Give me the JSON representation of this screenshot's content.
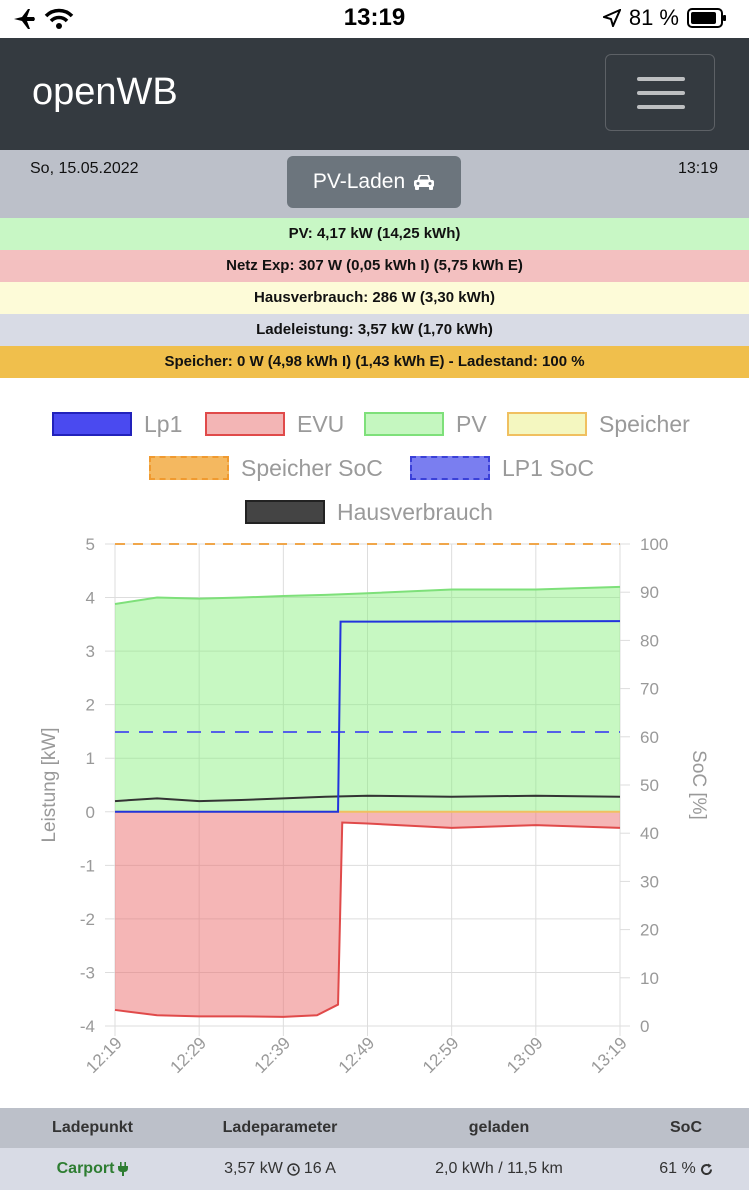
{
  "status_bar": {
    "time": "13:19",
    "battery": "81 %"
  },
  "navbar": {
    "brand": "openWB"
  },
  "info": {
    "date": "So, 15.05.2022",
    "mode_button": "PV-Laden",
    "time": "13:19"
  },
  "summary_rows": [
    {
      "text": "PV: 4,17 kW (14,25 kWh)",
      "color": "#c8f7c5"
    },
    {
      "text": "Netz Exp: 307 W (0,05 kWh I) (5,75 kWh E)",
      "color": "#f3c0c0"
    },
    {
      "text": "Hausverbrauch: 286 W (3,30 kWh)",
      "color": "#fdfbd8"
    },
    {
      "text": "Ladeleistung: 3,57 kW (1,70 kWh)",
      "color": "#d8dbe5"
    },
    {
      "text": "Speicher: 0 W (4,98 kWh I) (1,43 kWh E) - Ladestand: 100 %",
      "color": "#f0bf4c"
    }
  ],
  "chart_data": {
    "type": "line",
    "legend": [
      "Lp1",
      "EVU",
      "PV",
      "Speicher",
      "Speicher SoC",
      "LP1 SoC",
      "Hausverbrauch"
    ],
    "x_ticks": [
      "12:19",
      "12:29",
      "12:39",
      "12:49",
      "12:59",
      "13:09",
      "13:19"
    ],
    "ylabel": "Leistung [kW]",
    "ylabel_right": "SoC [%]",
    "ylim": [
      -4,
      5
    ],
    "ylim_right": [
      0,
      100
    ],
    "yticks": [
      "5",
      "4",
      "3",
      "2",
      "1",
      "0",
      "-1",
      "-2",
      "-3",
      "-4"
    ],
    "yticks_right": [
      "100",
      "90",
      "80",
      "70",
      "60",
      "50",
      "40",
      "30",
      "20",
      "10",
      "0"
    ],
    "series": [
      {
        "name": "Lp1",
        "x_minutes": [
          0,
          26.5,
          26.8,
          60
        ],
        "values": [
          0,
          0,
          3.55,
          3.56
        ],
        "color": "#2233dd"
      },
      {
        "name": "EVU",
        "x_minutes": [
          0,
          5,
          10,
          15,
          20,
          24,
          26.5,
          27,
          30,
          40,
          50,
          60
        ],
        "values": [
          -3.7,
          -3.8,
          -3.82,
          -3.82,
          -3.83,
          -3.8,
          -3.6,
          -0.2,
          -0.22,
          -0.3,
          -0.25,
          -0.3
        ],
        "color": "#e04a4a"
      },
      {
        "name": "PV",
        "x_minutes": [
          0,
          5,
          10,
          15,
          20,
          25,
          30,
          40,
          50,
          60
        ],
        "values": [
          3.88,
          4.0,
          3.98,
          4.0,
          4.03,
          4.05,
          4.08,
          4.15,
          4.15,
          4.2
        ],
        "color": "#7ee07a"
      },
      {
        "name": "Speicher",
        "x_minutes": [
          0,
          60
        ],
        "values": [
          0,
          0
        ],
        "color": "#f0e08a"
      },
      {
        "name": "Speicher SoC",
        "x_minutes": [
          0,
          60
        ],
        "values": [
          100,
          100
        ],
        "axis": "right",
        "color": "#f0a64a"
      },
      {
        "name": "LP1 SoC",
        "x_minutes": [
          0,
          60
        ],
        "values": [
          61,
          61
        ],
        "axis": "right",
        "color": "#5560e8"
      },
      {
        "name": "Hausverbrauch",
        "x_minutes": [
          0,
          5,
          10,
          15,
          20,
          25,
          30,
          40,
          50,
          60
        ],
        "values": [
          0.2,
          0.25,
          0.2,
          0.22,
          0.25,
          0.28,
          0.3,
          0.28,
          0.3,
          0.28
        ],
        "color": "#333333"
      }
    ]
  },
  "table": {
    "headers": [
      "Ladepunkt",
      "Ladeparameter",
      "geladen",
      "SoC"
    ],
    "row": {
      "ladepunkt": "Carport",
      "parameter_power": "3,57 kW",
      "parameter_current": "16 A",
      "geladen": "2,0 kWh / 11,5 km",
      "soc": "61 %"
    }
  }
}
